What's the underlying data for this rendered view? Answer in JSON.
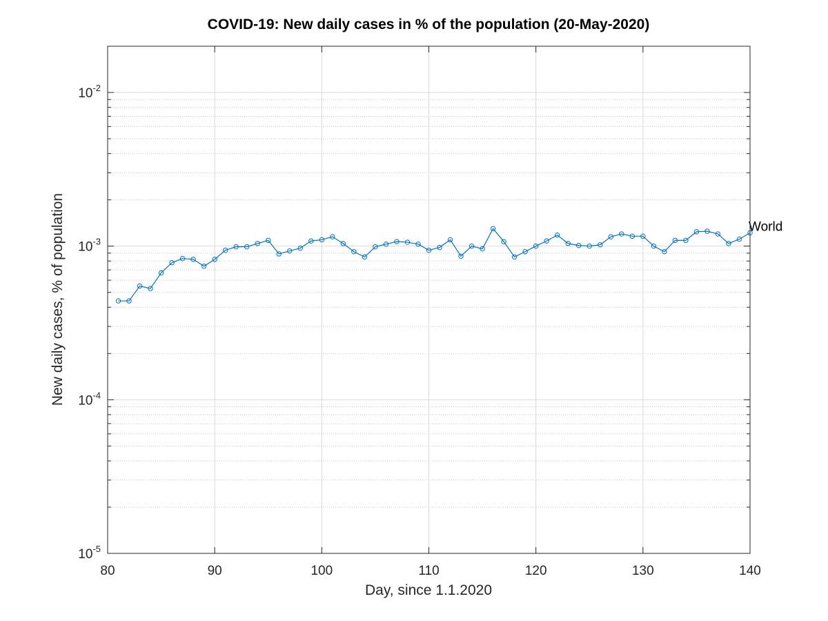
{
  "chart_data": {
    "type": "line",
    "title": "COVID-19: New daily cases in % of the population (20-May-2020)",
    "xlabel": "Day, since 1.1.2020",
    "ylabel": "New daily cases, % of population",
    "xlim": [
      80,
      140
    ],
    "ylim": [
      1e-05,
      0.02
    ],
    "yscale": "log",
    "grid": true,
    "x_ticks": [
      80,
      90,
      100,
      110,
      120,
      130,
      140
    ],
    "y_ticks": [
      {
        "base": "10",
        "exp": "-5"
      },
      {
        "base": "10",
        "exp": "-4"
      },
      {
        "base": "10",
        "exp": "-3"
      },
      {
        "base": "10",
        "exp": "-2"
      }
    ],
    "colors": {
      "series": "#0072BD",
      "grid": "#d9d9d9",
      "axis": "#262626"
    },
    "series": [
      {
        "name": "World",
        "marker": "circle",
        "x": [
          81,
          82,
          83,
          84,
          85,
          86,
          87,
          88,
          89,
          90,
          91,
          92,
          93,
          94,
          95,
          96,
          97,
          98,
          99,
          100,
          101,
          102,
          103,
          104,
          105,
          106,
          107,
          108,
          109,
          110,
          111,
          112,
          113,
          114,
          115,
          116,
          117,
          118,
          119,
          120,
          121,
          122,
          123,
          124,
          125,
          126,
          127,
          128,
          129,
          130,
          131,
          132,
          133,
          134,
          135,
          136,
          137,
          138,
          139,
          140
        ],
        "values": [
          0.00044,
          0.00044,
          0.00055,
          0.00053,
          0.00067,
          0.00078,
          0.00083,
          0.00082,
          0.00074,
          0.00082,
          0.00094,
          0.00099,
          0.00099,
          0.00104,
          0.00109,
          0.00089,
          0.00093,
          0.00097,
          0.00108,
          0.0011,
          0.00115,
          0.00104,
          0.00092,
          0.00085,
          0.00099,
          0.00103,
          0.00107,
          0.00106,
          0.00103,
          0.00094,
          0.00098,
          0.0011,
          0.00086,
          0.001,
          0.00096,
          0.0013,
          0.00107,
          0.00085,
          0.00092,
          0.001,
          0.00108,
          0.00118,
          0.00104,
          0.00101,
          0.001,
          0.00102,
          0.00115,
          0.0012,
          0.00116,
          0.00116,
          0.001,
          0.00092,
          0.00109,
          0.00109,
          0.00124,
          0.00125,
          0.0012,
          0.00104,
          0.00111,
          0.00122
        ]
      }
    ]
  }
}
